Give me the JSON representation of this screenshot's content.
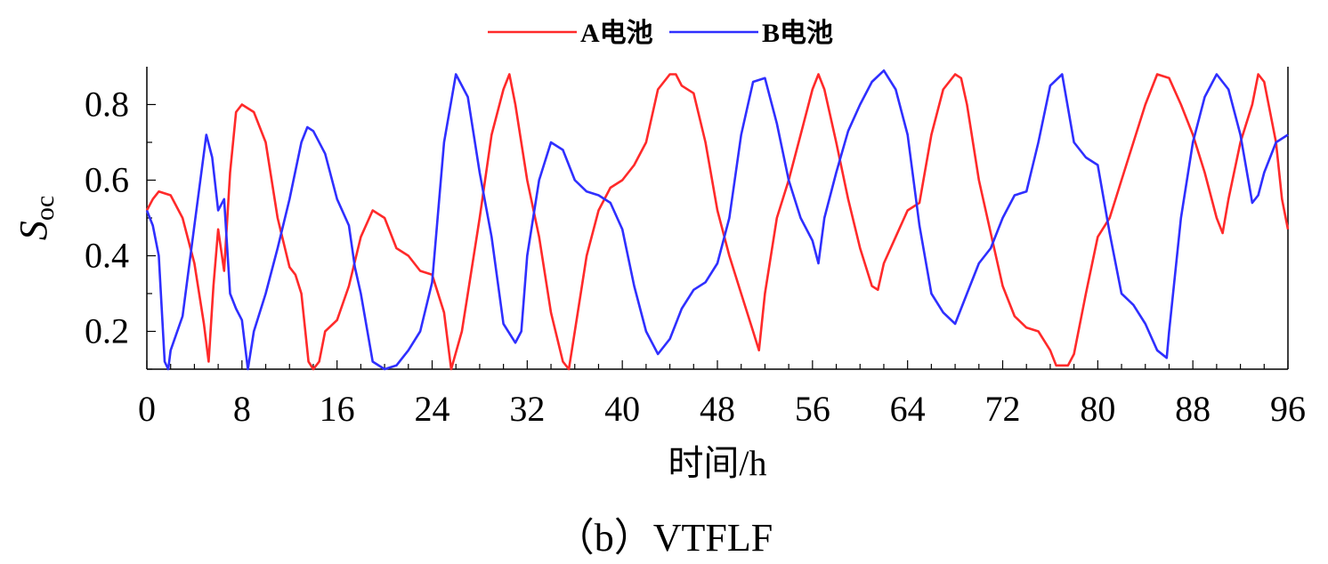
{
  "caption": "（b）VTFLF",
  "chart_data": {
    "type": "line",
    "xlabel": "时间/h",
    "ylabel_main": "S",
    "ylabel_sub": "oc",
    "xlim": [
      0,
      96
    ],
    "ylim": [
      0.1,
      0.9
    ],
    "xticks": [
      0,
      8,
      16,
      24,
      32,
      40,
      48,
      56,
      64,
      72,
      80,
      88,
      96
    ],
    "yticks": [
      0.2,
      0.4,
      0.6,
      0.8
    ],
    "ytick_labels": [
      "0.2",
      "0.4",
      "0.6",
      "0.8"
    ],
    "grid": false,
    "legend_position": "top-center",
    "series": [
      {
        "name": "A电池",
        "color": "#ff2a2a",
        "points": [
          [
            0,
            0.52
          ],
          [
            0.5,
            0.55
          ],
          [
            1,
            0.57
          ],
          [
            2,
            0.56
          ],
          [
            3,
            0.5
          ],
          [
            4,
            0.38
          ],
          [
            4.8,
            0.22
          ],
          [
            5.2,
            0.12
          ],
          [
            5.6,
            0.32
          ],
          [
            6,
            0.47
          ],
          [
            6.5,
            0.36
          ],
          [
            7,
            0.62
          ],
          [
            7.5,
            0.78
          ],
          [
            8,
            0.8
          ],
          [
            9,
            0.78
          ],
          [
            10,
            0.7
          ],
          [
            11,
            0.5
          ],
          [
            12,
            0.37
          ],
          [
            12.5,
            0.35
          ],
          [
            13,
            0.3
          ],
          [
            13.6,
            0.12
          ],
          [
            14,
            0.1
          ],
          [
            14.5,
            0.12
          ],
          [
            15,
            0.2
          ],
          [
            16,
            0.23
          ],
          [
            17,
            0.32
          ],
          [
            18,
            0.45
          ],
          [
            19,
            0.52
          ],
          [
            20,
            0.5
          ],
          [
            21,
            0.42
          ],
          [
            22,
            0.4
          ],
          [
            23,
            0.36
          ],
          [
            24,
            0.35
          ],
          [
            25,
            0.25
          ],
          [
            25.6,
            0.1
          ],
          [
            26.5,
            0.2
          ],
          [
            27,
            0.3
          ],
          [
            28,
            0.5
          ],
          [
            29,
            0.72
          ],
          [
            30,
            0.84
          ],
          [
            30.5,
            0.88
          ],
          [
            31,
            0.8
          ],
          [
            32,
            0.6
          ],
          [
            33,
            0.45
          ],
          [
            34,
            0.25
          ],
          [
            35,
            0.12
          ],
          [
            35.5,
            0.1
          ],
          [
            36,
            0.2
          ],
          [
            37,
            0.4
          ],
          [
            38,
            0.52
          ],
          [
            39,
            0.58
          ],
          [
            40,
            0.6
          ],
          [
            41,
            0.64
          ],
          [
            42,
            0.7
          ],
          [
            43,
            0.84
          ],
          [
            44,
            0.88
          ],
          [
            44.5,
            0.88
          ],
          [
            45,
            0.85
          ],
          [
            46,
            0.83
          ],
          [
            47,
            0.7
          ],
          [
            48,
            0.52
          ],
          [
            49,
            0.4
          ],
          [
            50,
            0.3
          ],
          [
            51,
            0.2
          ],
          [
            51.5,
            0.15
          ],
          [
            52,
            0.3
          ],
          [
            53,
            0.5
          ],
          [
            54,
            0.6
          ],
          [
            55,
            0.72
          ],
          [
            56,
            0.84
          ],
          [
            56.5,
            0.88
          ],
          [
            57,
            0.84
          ],
          [
            58,
            0.7
          ],
          [
            59,
            0.55
          ],
          [
            60,
            0.42
          ],
          [
            61,
            0.32
          ],
          [
            61.5,
            0.31
          ],
          [
            62,
            0.38
          ],
          [
            63,
            0.45
          ],
          [
            64,
            0.52
          ],
          [
            65,
            0.54
          ],
          [
            66,
            0.72
          ],
          [
            67,
            0.84
          ],
          [
            68,
            0.88
          ],
          [
            68.5,
            0.87
          ],
          [
            69,
            0.8
          ],
          [
            70,
            0.6
          ],
          [
            71,
            0.46
          ],
          [
            72,
            0.32
          ],
          [
            73,
            0.24
          ],
          [
            74,
            0.21
          ],
          [
            75,
            0.2
          ],
          [
            76,
            0.15
          ],
          [
            76.5,
            0.11
          ],
          [
            77.5,
            0.11
          ],
          [
            78,
            0.14
          ],
          [
            79,
            0.3
          ],
          [
            80,
            0.45
          ],
          [
            81,
            0.5
          ],
          [
            82,
            0.6
          ],
          [
            83,
            0.7
          ],
          [
            84,
            0.8
          ],
          [
            85,
            0.88
          ],
          [
            86,
            0.87
          ],
          [
            87,
            0.8
          ],
          [
            88,
            0.72
          ],
          [
            89,
            0.62
          ],
          [
            90,
            0.5
          ],
          [
            90.5,
            0.46
          ],
          [
            91,
            0.55
          ],
          [
            92,
            0.7
          ],
          [
            93,
            0.8
          ],
          [
            93.5,
            0.88
          ],
          [
            94,
            0.86
          ],
          [
            95,
            0.7
          ],
          [
            95.5,
            0.55
          ],
          [
            96,
            0.47
          ]
        ]
      },
      {
        "name": "B电池",
        "color": "#2f2fff",
        "points": [
          [
            0,
            0.52
          ],
          [
            0.5,
            0.48
          ],
          [
            1,
            0.4
          ],
          [
            1.5,
            0.12
          ],
          [
            1.8,
            0.1
          ],
          [
            2,
            0.15
          ],
          [
            3,
            0.24
          ],
          [
            4,
            0.48
          ],
          [
            4.5,
            0.6
          ],
          [
            5,
            0.72
          ],
          [
            5.5,
            0.66
          ],
          [
            6,
            0.52
          ],
          [
            6.5,
            0.55
          ],
          [
            7,
            0.3
          ],
          [
            7.5,
            0.26
          ],
          [
            8,
            0.23
          ],
          [
            8.5,
            0.1
          ],
          [
            9,
            0.2
          ],
          [
            10,
            0.3
          ],
          [
            11,
            0.42
          ],
          [
            12,
            0.55
          ],
          [
            13,
            0.7
          ],
          [
            13.5,
            0.74
          ],
          [
            14,
            0.73
          ],
          [
            15,
            0.67
          ],
          [
            16,
            0.55
          ],
          [
            17,
            0.48
          ],
          [
            17.5,
            0.37
          ],
          [
            18,
            0.3
          ],
          [
            19,
            0.12
          ],
          [
            20,
            0.1
          ],
          [
            21,
            0.11
          ],
          [
            22,
            0.15
          ],
          [
            23,
            0.2
          ],
          [
            24,
            0.33
          ],
          [
            25,
            0.7
          ],
          [
            26,
            0.88
          ],
          [
            27,
            0.82
          ],
          [
            28,
            0.62
          ],
          [
            29,
            0.45
          ],
          [
            30,
            0.22
          ],
          [
            31,
            0.17
          ],
          [
            31.5,
            0.2
          ],
          [
            32,
            0.4
          ],
          [
            33,
            0.6
          ],
          [
            34,
            0.7
          ],
          [
            35,
            0.68
          ],
          [
            36,
            0.6
          ],
          [
            37,
            0.57
          ],
          [
            38,
            0.56
          ],
          [
            39,
            0.54
          ],
          [
            40,
            0.47
          ],
          [
            41,
            0.32
          ],
          [
            42,
            0.2
          ],
          [
            43,
            0.14
          ],
          [
            44,
            0.18
          ],
          [
            45,
            0.26
          ],
          [
            46,
            0.31
          ],
          [
            47,
            0.33
          ],
          [
            48,
            0.38
          ],
          [
            49,
            0.5
          ],
          [
            50,
            0.72
          ],
          [
            51,
            0.86
          ],
          [
            52,
            0.87
          ],
          [
            53,
            0.75
          ],
          [
            54,
            0.6
          ],
          [
            55,
            0.5
          ],
          [
            56,
            0.44
          ],
          [
            56.5,
            0.38
          ],
          [
            57,
            0.5
          ],
          [
            58,
            0.62
          ],
          [
            59,
            0.73
          ],
          [
            60,
            0.8
          ],
          [
            61,
            0.86
          ],
          [
            62,
            0.89
          ],
          [
            63,
            0.84
          ],
          [
            64,
            0.72
          ],
          [
            65,
            0.48
          ],
          [
            66,
            0.3
          ],
          [
            67,
            0.25
          ],
          [
            68,
            0.22
          ],
          [
            69,
            0.3
          ],
          [
            70,
            0.38
          ],
          [
            71,
            0.42
          ],
          [
            72,
            0.5
          ],
          [
            73,
            0.56
          ],
          [
            74,
            0.57
          ],
          [
            75,
            0.7
          ],
          [
            76,
            0.85
          ],
          [
            77,
            0.88
          ],
          [
            78,
            0.7
          ],
          [
            79,
            0.66
          ],
          [
            80,
            0.64
          ],
          [
            81,
            0.46
          ],
          [
            82,
            0.3
          ],
          [
            83,
            0.27
          ],
          [
            84,
            0.22
          ],
          [
            85,
            0.15
          ],
          [
            85.8,
            0.13
          ],
          [
            86,
            0.2
          ],
          [
            87,
            0.5
          ],
          [
            88,
            0.7
          ],
          [
            89,
            0.82
          ],
          [
            90,
            0.88
          ],
          [
            91,
            0.84
          ],
          [
            92,
            0.72
          ],
          [
            93,
            0.54
          ],
          [
            93.5,
            0.56
          ],
          [
            94,
            0.62
          ],
          [
            95,
            0.7
          ],
          [
            96,
            0.72
          ]
        ]
      }
    ]
  }
}
